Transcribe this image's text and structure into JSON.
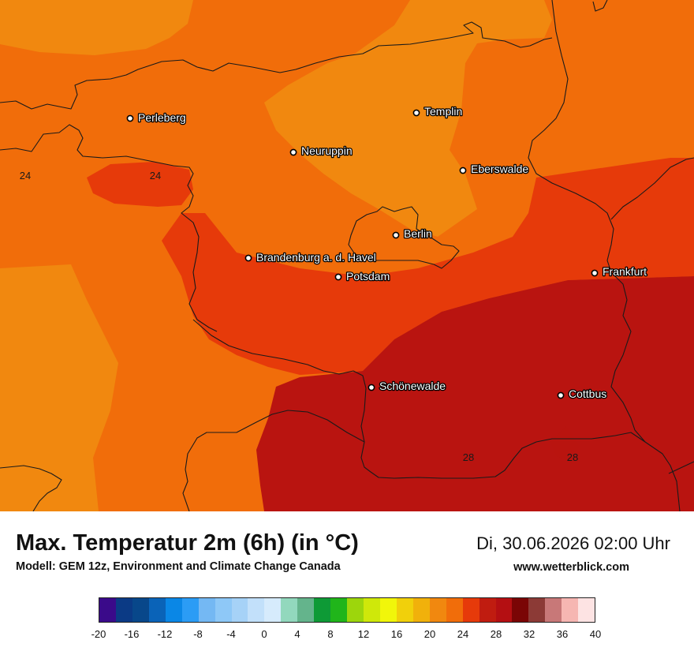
{
  "title": "Max. Temperatur 2m (6h) (in °C)",
  "model": "Modell: GEM 12z, Environment and Climate Change Canada",
  "datetime": "Di, 30.06.2026 02:00 Uhr",
  "website": "www.wetterblick.com",
  "cities": [
    {
      "name": "Perleberg"
    },
    {
      "name": "Templin"
    },
    {
      "name": "Neuruppin"
    },
    {
      "name": "Eberswalde"
    },
    {
      "name": "Berlin"
    },
    {
      "name": "Brandenburg a. d. Havel"
    },
    {
      "name": "Potsdam"
    },
    {
      "name": "Frankfurt"
    },
    {
      "name": "Schönewalde"
    },
    {
      "name": "Cottbus"
    }
  ],
  "isoline_labels": [
    "24",
    "24",
    "28",
    "28"
  ],
  "legend": {
    "ticks": [
      "-20",
      "-16",
      "-12",
      "-8",
      "-4",
      "0",
      "4",
      "8",
      "12",
      "16",
      "20",
      "24",
      "28",
      "32",
      "36",
      "40"
    ],
    "colors": [
      "#3a0a8a",
      "#0b3a85",
      "#08478a",
      "#0a63b8",
      "#0a87e6",
      "#2b9cf5",
      "#74b8f3",
      "#8ec8f7",
      "#a6d2f7",
      "#c2e0fa",
      "#d6ebfc",
      "#92d8bd",
      "#64b48c",
      "#0e9a36",
      "#20b51a",
      "#9dd60c",
      "#cfe80a",
      "#f1f60a",
      "#f1d00b",
      "#f1b10b",
      "#f1880f",
      "#f16d0a",
      "#e63a0a",
      "#c01c10",
      "#b40f12",
      "#7a0505",
      "#8c3a36",
      "#c87878",
      "#f6b6b2",
      "#fde3e3"
    ]
  },
  "palette": {
    "band_20_22": "#f1880f",
    "band_22_24": "#f16d0a",
    "band_24_26": "#e63a0a",
    "band_26_28": "#b91410"
  }
}
